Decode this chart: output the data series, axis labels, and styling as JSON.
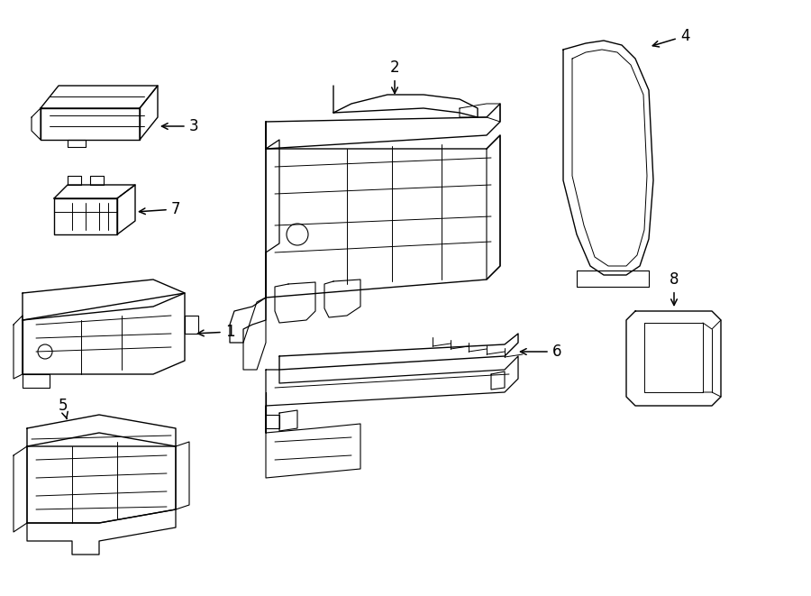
{
  "background_color": "#ffffff",
  "line_color": "#000000",
  "line_width": 1.0,
  "label_fontsize": 12,
  "fig_width": 9.0,
  "fig_height": 6.61,
  "fig_dpi": 100
}
